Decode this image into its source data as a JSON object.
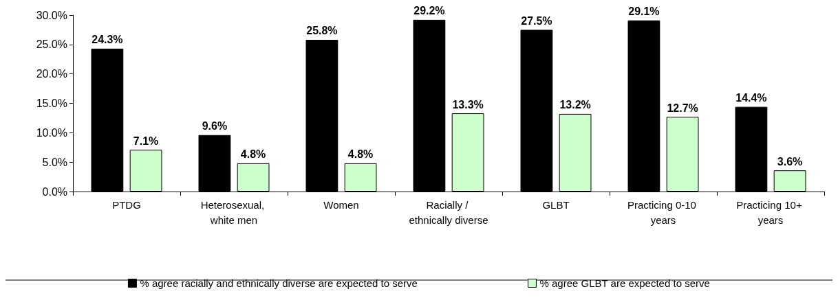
{
  "chart_data": {
    "type": "bar",
    "categories": [
      "PTDG",
      "Heterosexual, white men",
      "Women",
      "Racially / ethnically diverse",
      "GLBT",
      "Practicing 0-10 years",
      "Practicing 10+ years"
    ],
    "series": [
      {
        "name": "% agree racially and ethnically diverse are expected to serve",
        "color": "#000000",
        "values": [
          24.3,
          9.6,
          25.8,
          29.2,
          27.5,
          29.1,
          14.4
        ],
        "value_labels": [
          "24.3%",
          "9.6%",
          "25.8%",
          "29.2%",
          "27.5%",
          "29.1%",
          "14.4%"
        ]
      },
      {
        "name": "% agree GLBT are expected to serve",
        "color": "#ccffcc",
        "values": [
          7.1,
          4.8,
          4.8,
          13.3,
          13.2,
          12.7,
          3.6
        ],
        "value_labels": [
          "7.1%",
          "4.8%",
          "4.8%",
          "13.3%",
          "13.2%",
          "12.7%",
          "3.6%"
        ]
      }
    ],
    "ylim": [
      0,
      30
    ],
    "yticks": [
      {
        "value": 0,
        "label": "0.0%"
      },
      {
        "value": 5,
        "label": "5.0%"
      },
      {
        "value": 10,
        "label": "10.0%"
      },
      {
        "value": 15,
        "label": "15.0%"
      },
      {
        "value": 20,
        "label": "20.0%"
      },
      {
        "value": 25,
        "label": "25.0%"
      },
      {
        "value": 30,
        "label": "30.0%"
      }
    ],
    "grid": false,
    "legend": "bottom"
  }
}
